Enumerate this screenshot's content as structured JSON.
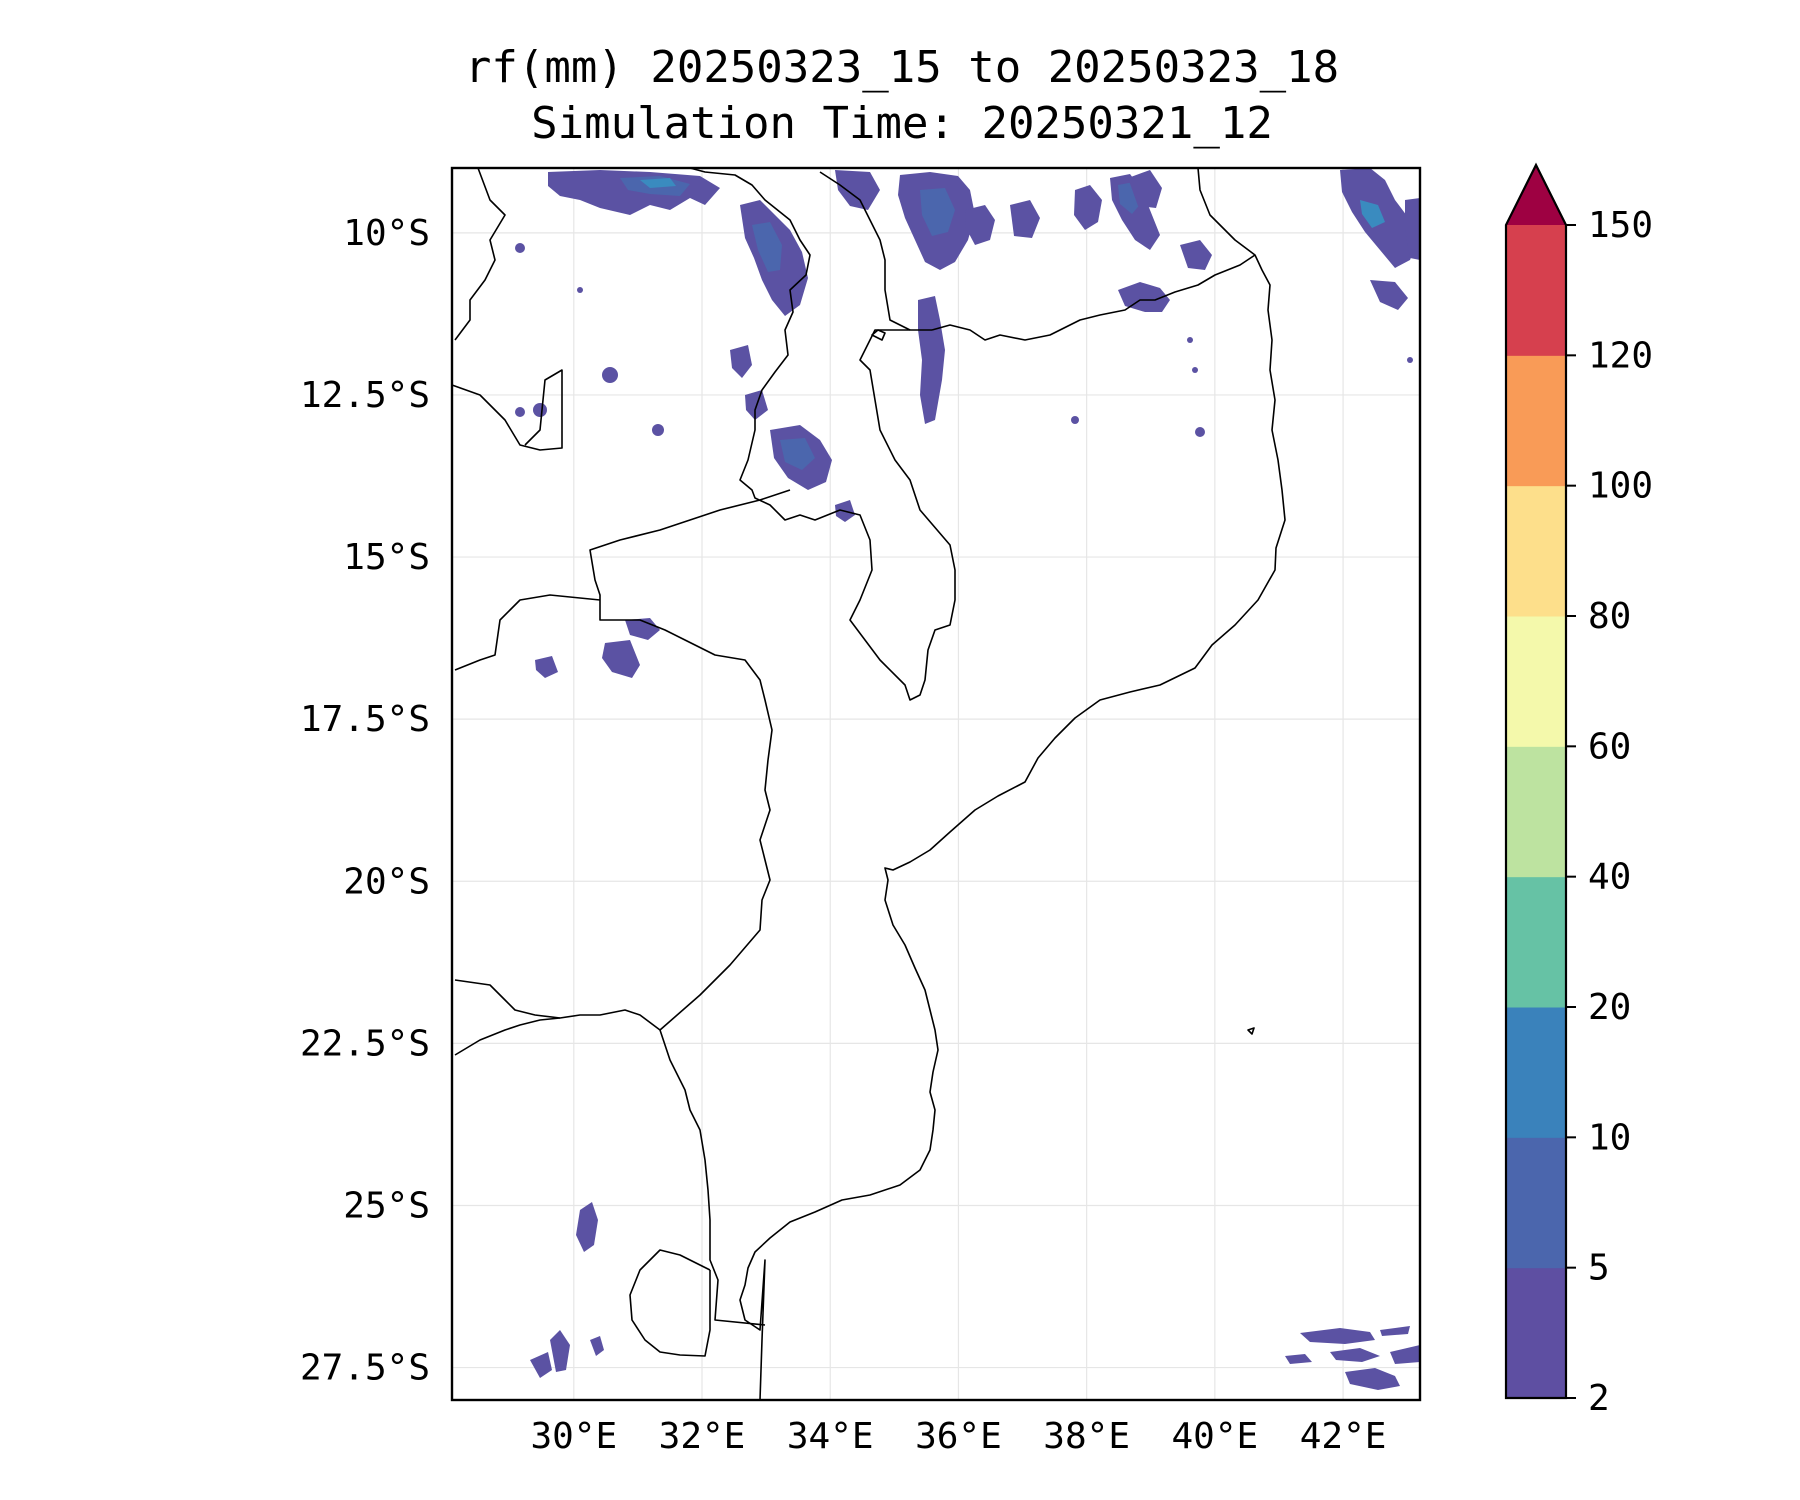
{
  "title": {
    "line1": "rf(mm) 20250323_15 to 20250323_18",
    "line2": "Simulation Time: 20250321_12"
  },
  "map": {
    "lon_range": [
      28.1,
      43.2
    ],
    "lat_range": [
      -28.0,
      -9.0
    ],
    "x_ticks": [
      {
        "lon": 30,
        "label": "30°E"
      },
      {
        "lon": 32,
        "label": "32°E"
      },
      {
        "lon": 34,
        "label": "34°E"
      },
      {
        "lon": 36,
        "label": "36°E"
      },
      {
        "lon": 38,
        "label": "38°E"
      },
      {
        "lon": 40,
        "label": "40°E"
      },
      {
        "lon": 42,
        "label": "42°E"
      }
    ],
    "y_ticks": [
      {
        "lat": -10,
        "label": "10°S"
      },
      {
        "lat": -12.5,
        "label": "12.5°S"
      },
      {
        "lat": -15,
        "label": "15°S"
      },
      {
        "lat": -17.5,
        "label": "17.5°S"
      },
      {
        "lat": -20,
        "label": "20°S"
      },
      {
        "lat": -22.5,
        "label": "22.5°S"
      },
      {
        "lat": -25,
        "label": "25°S"
      },
      {
        "lat": -27.5,
        "label": "27.5°S"
      }
    ],
    "gridlines": true
  },
  "colorbar": {
    "levels": [
      "2",
      "5",
      "10",
      "20",
      "40",
      "60",
      "80",
      "100",
      "120",
      "150"
    ],
    "colors": [
      "#5e4fa2",
      "#4b66ad",
      "#3a82bb",
      "#66c2a5",
      "#bde3a0",
      "#f4f9ab",
      "#fddf8b",
      "#f99b57",
      "#d6404e"
    ],
    "extend_color": "#9e0142",
    "extend": "max"
  }
}
